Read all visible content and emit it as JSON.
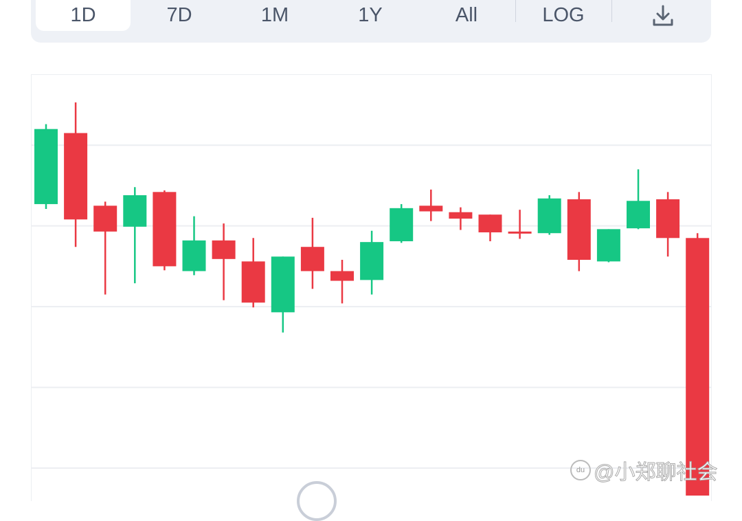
{
  "toolbar": {
    "tabs": [
      {
        "label": "1D",
        "active": true
      },
      {
        "label": "7D"
      },
      {
        "label": "1M"
      },
      {
        "label": "1Y"
      },
      {
        "label": "All"
      }
    ],
    "log_label": "LOG",
    "download_icon": "download-icon"
  },
  "colors": {
    "up": "#16c784",
    "down": "#ea3943",
    "grid": "#eceef2",
    "toolbar_bg": "#eef1f6"
  },
  "watermark": "@小郑聊社会",
  "watermark_logo": "du",
  "chart_data": {
    "type": "candlestick",
    "title": "",
    "xlabel": "",
    "ylabel": "",
    "ylim": [
      -0.34,
      4.87
    ],
    "grid": true,
    "gridlines": [
      0,
      1,
      2,
      3,
      4
    ],
    "candles": [
      {
        "open": 3.27,
        "close": 4.2,
        "high": 4.26,
        "low": 3.21
      },
      {
        "open": 4.15,
        "close": 3.08,
        "high": 4.53,
        "low": 2.74
      },
      {
        "open": 3.25,
        "close": 2.93,
        "high": 3.3,
        "low": 2.15
      },
      {
        "open": 2.99,
        "close": 3.38,
        "high": 3.48,
        "low": 2.29
      },
      {
        "open": 3.42,
        "close": 2.5,
        "high": 3.44,
        "low": 2.45
      },
      {
        "open": 2.44,
        "close": 2.82,
        "high": 3.12,
        "low": 2.39
      },
      {
        "open": 2.82,
        "close": 2.59,
        "high": 3.03,
        "low": 2.08
      },
      {
        "open": 2.56,
        "close": 2.05,
        "high": 2.85,
        "low": 1.99
      },
      {
        "open": 1.93,
        "close": 2.62,
        "high": 2.62,
        "low": 1.68
      },
      {
        "open": 2.74,
        "close": 2.44,
        "high": 3.1,
        "low": 2.22
      },
      {
        "open": 2.44,
        "close": 2.32,
        "high": 2.58,
        "low": 2.04
      },
      {
        "open": 2.33,
        "close": 2.8,
        "high": 2.94,
        "low": 2.15
      },
      {
        "open": 2.81,
        "close": 3.22,
        "high": 3.27,
        "low": 2.79
      },
      {
        "open": 3.25,
        "close": 3.18,
        "high": 3.45,
        "low": 3.06
      },
      {
        "open": 3.17,
        "close": 3.09,
        "high": 3.23,
        "low": 2.95
      },
      {
        "open": 3.14,
        "close": 2.92,
        "high": 3.14,
        "low": 2.81
      },
      {
        "open": 2.93,
        "close": 2.91,
        "high": 3.2,
        "low": 2.84
      },
      {
        "open": 2.91,
        "close": 3.34,
        "high": 3.38,
        "low": 2.89
      },
      {
        "open": 3.33,
        "close": 2.58,
        "high": 3.42,
        "low": 2.44
      },
      {
        "open": 2.56,
        "close": 2.96,
        "high": 2.96,
        "low": 2.55
      },
      {
        "open": 2.97,
        "close": 3.31,
        "high": 3.7,
        "low": 2.96
      },
      {
        "open": 3.33,
        "close": 2.85,
        "high": 3.42,
        "low": 2.62
      },
      {
        "open": 2.85,
        "close": -0.34,
        "high": 2.91,
        "low": -0.34
      }
    ]
  }
}
